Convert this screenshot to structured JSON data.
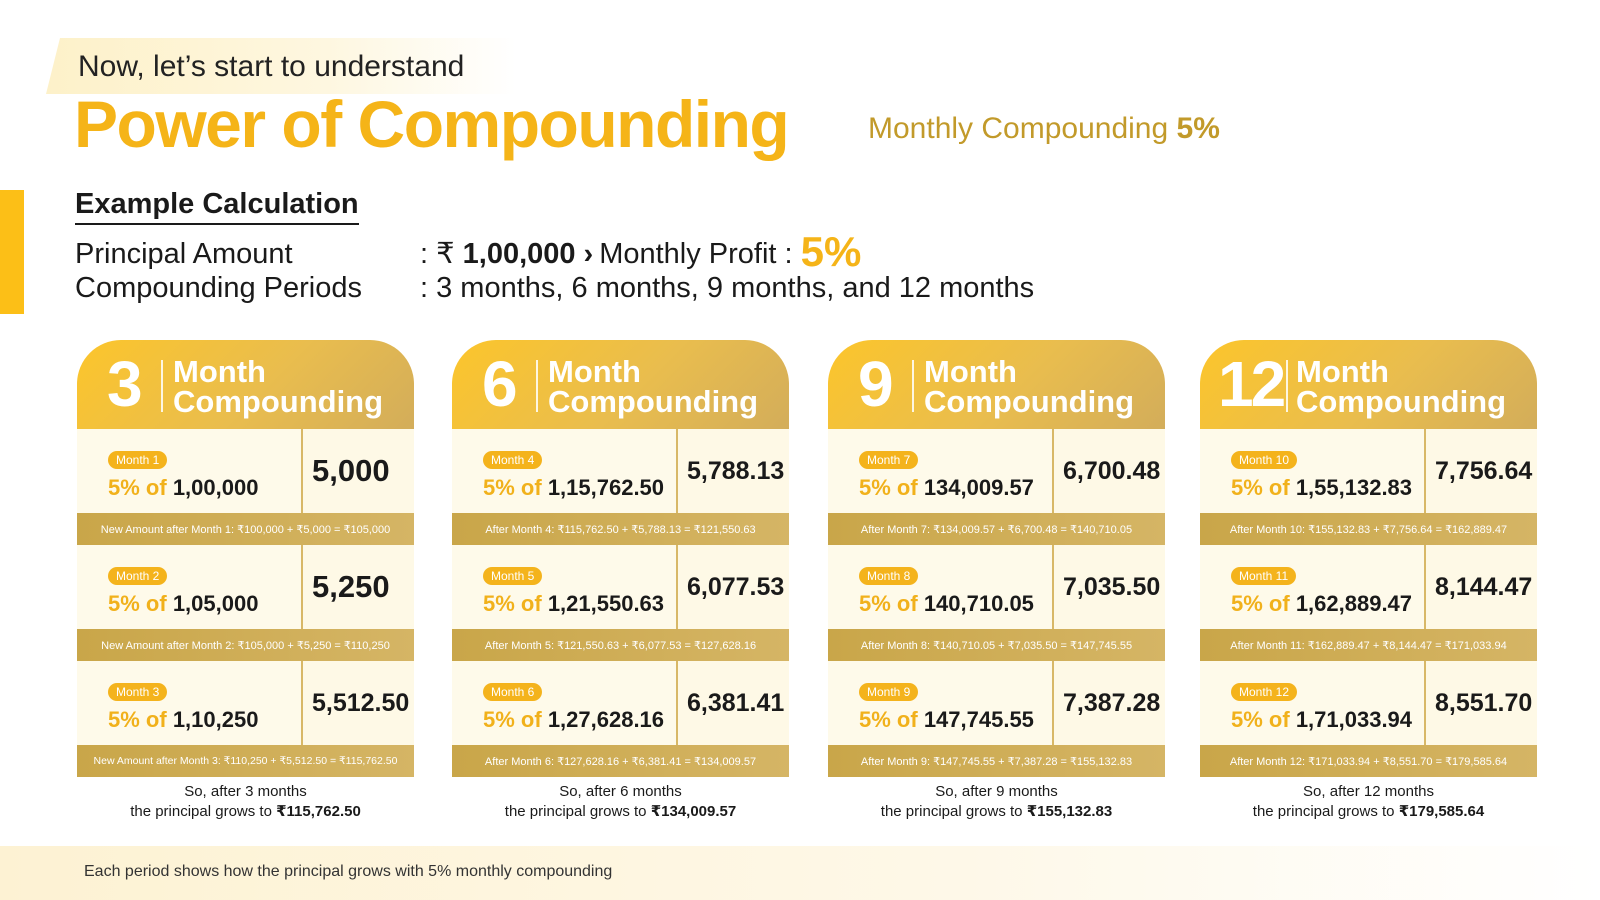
{
  "header": {
    "intro": "Now, let’s start to understand",
    "title": "Power of Compounding",
    "monthly_label": "Monthly Compounding",
    "monthly_value": "5%"
  },
  "example": {
    "heading": "Example Calculation",
    "principal_label": "Principal Amount",
    "principal_sep": ": ₹",
    "principal_value": "1,00,000",
    "arrow": "›",
    "profit_label": "Monthly Profit :",
    "profit_value": "5%",
    "periods_label": "Compounding Periods",
    "periods_value": ": 3 months, 6 months, 9 months, and 12 months"
  },
  "cards": [
    {
      "number": "3",
      "title_line1": "Month",
      "title_line2": "Compounding",
      "months": [
        {
          "badge": "Month 1",
          "pct": "5% of",
          "amount": "1,00,000",
          "result": "5,000",
          "formula": "New Amount after Month 1: ₹100,000 + ₹5,000 = ₹105,000"
        },
        {
          "badge": "Month 2",
          "pct": "5% of",
          "amount": "1,05,000",
          "result": "5,250",
          "formula": "New Amount after Month 2: ₹105,000 + ₹5,250 = ₹110,250"
        },
        {
          "badge": "Month 3",
          "pct": "5% of",
          "amount": "1,10,250",
          "result": "5,512.50",
          "formula": "New Amount after Month 3: ₹110,250 + ₹5,512.50 = ₹115,762.50"
        }
      ],
      "summary_line1": "So, after 3 months",
      "summary_line2": "the principal grows to",
      "summary_value": "₹115,762.50"
    },
    {
      "number": "6",
      "title_line1": "Month",
      "title_line2": "Compounding",
      "months": [
        {
          "badge": "Month 4",
          "pct": "5% of",
          "amount": "1,15,762.50",
          "result": "5,788.13",
          "formula": "After Month 4: ₹115,762.50 + ₹5,788.13 = ₹121,550.63"
        },
        {
          "badge": "Month 5",
          "pct": "5% of",
          "amount": "1,21,550.63",
          "result": "6,077.53",
          "formula": "After Month 5: ₹121,550.63 + ₹6,077.53 = ₹127,628.16"
        },
        {
          "badge": "Month 6",
          "pct": "5% of",
          "amount": "1,27,628.16",
          "result": "6,381.41",
          "formula": "After Month 6: ₹127,628.16 + ₹6,381.41 = ₹134,009.57"
        }
      ],
      "summary_line1": "So, after 6 months",
      "summary_line2": "the principal grows to",
      "summary_value": "₹134,009.57"
    },
    {
      "number": "9",
      "title_line1": "Month",
      "title_line2": "Compounding",
      "months": [
        {
          "badge": "Month 7",
          "pct": "5% of",
          "amount": "134,009.57",
          "result": "6,700.48",
          "formula": "After Month 7: ₹134,009.57 + ₹6,700.48 = ₹140,710.05"
        },
        {
          "badge": "Month 8",
          "pct": "5% of",
          "amount": "140,710.05",
          "result": "7,035.50",
          "formula": "After Month 8: ₹140,710.05 + ₹7,035.50 = ₹147,745.55"
        },
        {
          "badge": "Month 9",
          "pct": "5% of",
          "amount": "147,745.55",
          "result": "7,387.28",
          "formula": "After Month 9: ₹147,745.55 + ₹7,387.28 = ₹155,132.83"
        }
      ],
      "summary_line1": "So, after 9 months",
      "summary_line2": "the principal grows to",
      "summary_value": "₹155,132.83"
    },
    {
      "number": "12",
      "title_line1": "Month",
      "title_line2": "Compounding",
      "months": [
        {
          "badge": "Month 10",
          "pct": "5% of",
          "amount": "1,55,132.83",
          "result": "7,756.64",
          "formula": "After Month 10: ₹155,132.83 + ₹7,756.64 = ₹162,889.47"
        },
        {
          "badge": "Month 11",
          "pct": "5% of",
          "amount": "1,62,889.47",
          "result": "8,144.47",
          "formula": "After Month 11: ₹162,889.47 + ₹8,144.47 = ₹171,033.94"
        },
        {
          "badge": "Month 12",
          "pct": "5% of",
          "amount": "1,71,033.94",
          "result": "8,551.70",
          "formula": "After Month 12: ₹171,033.94 + ₹8,551.70 = ₹179,585.64"
        }
      ],
      "summary_line1": "So, after 12 months",
      "summary_line2": "the principal grows to",
      "summary_value": "₹179,585.64"
    }
  ],
  "footer": {
    "text": "Each period shows how the principal grows with 5% monthly compounding"
  },
  "colors": {
    "accent_yellow": "#f5b418",
    "gold_text": "#c29a2a",
    "formula_band": "#c9a649",
    "card_body": "#fef9e6"
  }
}
